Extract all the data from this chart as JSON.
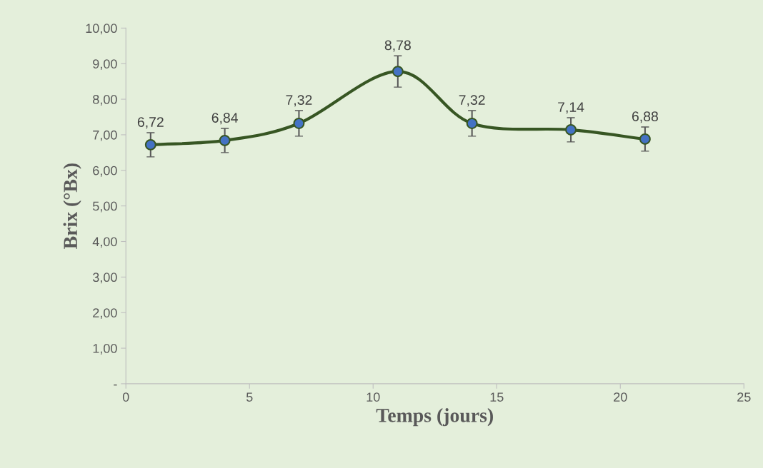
{
  "chart_data": {
    "type": "line",
    "xlabel": "Temps (jours)",
    "ylabel": "Brix (°Bx)",
    "x": [
      1,
      4,
      7,
      11,
      14,
      18,
      21
    ],
    "series": [
      {
        "color": "#375623",
        "values": [
          6.72,
          6.84,
          7.32,
          8.78,
          7.32,
          7.14,
          6.88
        ],
        "errors": [
          0.34,
          0.34,
          0.36,
          0.44,
          0.36,
          0.34,
          0.34
        ]
      }
    ],
    "xlim": [
      0,
      25
    ],
    "xticks": [
      0,
      5,
      10,
      15,
      20,
      25
    ],
    "ylim": [
      0,
      10
    ],
    "yticks": [
      {
        "value": 0,
        "label": "-"
      },
      {
        "value": 1,
        "label": "1,00"
      },
      {
        "value": 2,
        "label": "2,00"
      },
      {
        "value": 3,
        "label": "3,00"
      },
      {
        "value": 4,
        "label": "4,00"
      },
      {
        "value": 5,
        "label": "5,00"
      },
      {
        "value": 6,
        "label": "6,00"
      },
      {
        "value": 7,
        "label": "7,00"
      },
      {
        "value": 8,
        "label": "8,00"
      },
      {
        "value": 9,
        "label": "9,00"
      },
      {
        "value": 10,
        "label": "10,00"
      }
    ],
    "value_labels": [
      "6,72",
      "6,84",
      "7,32",
      "8,78",
      "7,32",
      "7,14",
      "6,88"
    ],
    "marker": "circle",
    "line_style": "solid",
    "grid": false,
    "legend": false
  }
}
